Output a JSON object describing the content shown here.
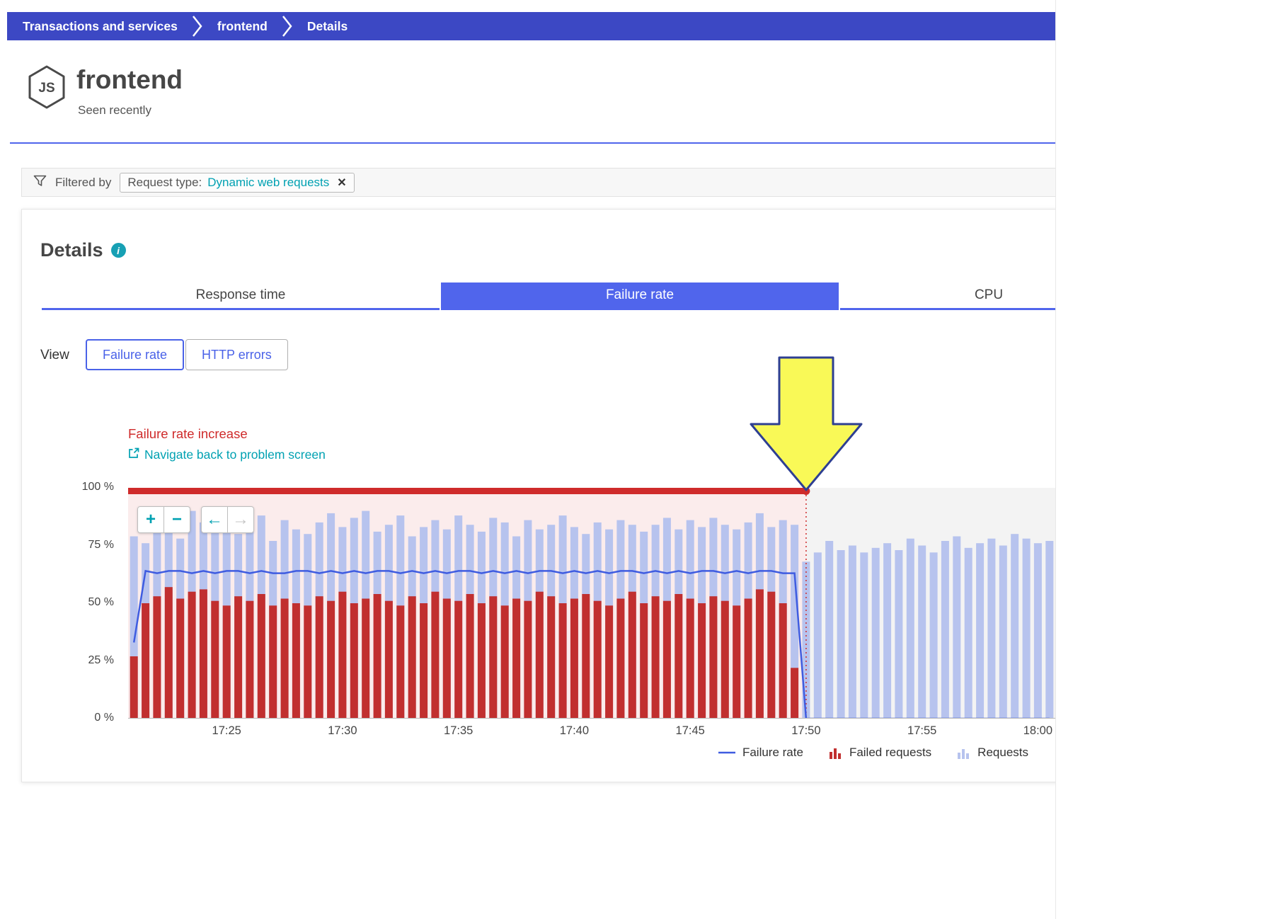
{
  "breadcrumb": {
    "items": [
      "Transactions and services",
      "frontend",
      "Details"
    ]
  },
  "header": {
    "title": "frontend",
    "subtitle": "Seen recently",
    "icon_text": "JS"
  },
  "filter": {
    "label": "Filtered by",
    "chip": {
      "key": "Request type:",
      "value": "Dynamic web requests",
      "close_glyph": "✕"
    }
  },
  "details": {
    "heading": "Details",
    "info_glyph": "i",
    "tabs": [
      {
        "label": "Response time",
        "active": false
      },
      {
        "label": "Failure rate",
        "active": true
      },
      {
        "label": "CPU",
        "active": false
      }
    ],
    "view": {
      "label": "View",
      "options": [
        {
          "label": "Failure rate",
          "selected": true
        },
        {
          "label": "HTTP errors",
          "selected": false
        }
      ]
    }
  },
  "annotation": {
    "title": "Failure rate increase",
    "link": "Navigate back to problem screen"
  },
  "zoom_controls": {
    "zoom_in": "+",
    "zoom_out": "−",
    "back": "←",
    "forward": "→"
  },
  "legend": [
    {
      "label": "Failure rate",
      "type": "line",
      "color": "#3f5ce0"
    },
    {
      "label": "Failed requests",
      "type": "bars",
      "color": "#c12f2f"
    },
    {
      "label": "Requests",
      "type": "bars",
      "color": "#b7c3ee"
    }
  ],
  "colors": {
    "breadcrumb_bg": "#3c48c4",
    "accent_blue": "#5065ec",
    "teal": "#00a1b2",
    "red": "#cf2b2b",
    "arrow_fill": "#f9f957",
    "arrow_stroke": "#2e3f92"
  },
  "chart_data": {
    "type": "bar",
    "title": "Failure rate increase",
    "ylim": [
      0,
      100
    ],
    "bar_count": 80,
    "problem_end_index": 58,
    "problem_region_color": "#fbecec",
    "after_region_color": "#f3f3f3",
    "cap_color": "#cf2b2b",
    "y_ticks": [
      {
        "label": "100 %",
        "value": 100
      },
      {
        "label": "75 %",
        "value": 75
      },
      {
        "label": "50 %",
        "value": 50
      },
      {
        "label": "25 %",
        "value": 25
      },
      {
        "label": "0 %",
        "value": 0
      }
    ],
    "x_ticks": [
      {
        "label": "17:25",
        "index": 8
      },
      {
        "label": "17:30",
        "index": 18
      },
      {
        "label": "17:35",
        "index": 28
      },
      {
        "label": "17:40",
        "index": 38
      },
      {
        "label": "17:45",
        "index": 48
      },
      {
        "label": "17:50",
        "index": 58
      },
      {
        "label": "17:55",
        "index": 68
      },
      {
        "label": "18:00",
        "index": 78
      }
    ],
    "series": [
      {
        "name": "Requests",
        "type": "bar",
        "color": "#b7c3ee",
        "values": [
          79,
          76,
          87,
          83,
          78,
          90,
          85,
          81,
          84,
          80,
          83,
          88,
          77,
          86,
          82,
          80,
          85,
          89,
          83,
          87,
          90,
          81,
          84,
          88,
          79,
          83,
          86,
          82,
          88,
          84,
          81,
          87,
          85,
          79,
          86,
          82,
          84,
          88,
          83,
          80,
          85,
          82,
          86,
          84,
          81,
          84,
          87,
          82,
          86,
          83,
          87,
          84,
          82,
          85,
          89,
          83,
          86,
          84,
          68,
          72,
          77,
          73,
          75,
          72,
          74,
          76,
          73,
          78,
          75,
          72,
          77,
          79,
          74,
          76,
          78,
          75,
          80,
          78,
          76,
          77
        ]
      },
      {
        "name": "Failed requests",
        "type": "bar",
        "color": "#c12f2f",
        "values": [
          27,
          50,
          53,
          57,
          52,
          55,
          56,
          51,
          49,
          53,
          51,
          54,
          49,
          52,
          50,
          49,
          53,
          51,
          55,
          50,
          52,
          54,
          51,
          49,
          53,
          50,
          55,
          52,
          51,
          54,
          50,
          53,
          49,
          52,
          51,
          55,
          53,
          50,
          52,
          54,
          51,
          49,
          52,
          55,
          50,
          53,
          51,
          54,
          52,
          50,
          53,
          51,
          49,
          52,
          56,
          55,
          50,
          22
        ]
      },
      {
        "name": "Failure rate",
        "type": "line",
        "color": "#3f5ce0",
        "values": [
          33,
          64,
          63,
          64,
          64,
          63,
          64,
          63,
          64,
          64,
          63,
          64,
          63,
          63,
          64,
          64,
          63,
          64,
          63,
          64,
          63,
          64,
          64,
          63,
          64,
          63,
          64,
          63,
          64,
          64,
          63,
          64,
          63,
          64,
          63,
          64,
          64,
          63,
          64,
          63,
          64,
          63,
          64,
          64,
          63,
          64,
          63,
          64,
          63,
          64,
          64,
          63,
          64,
          63,
          64,
          64,
          63,
          63,
          0,
          0,
          0,
          0,
          0,
          0,
          0,
          0,
          0,
          0,
          0,
          0,
          0,
          0,
          0,
          0,
          0,
          0,
          0,
          0,
          0,
          0
        ]
      }
    ],
    "legend_position": "bottom-right",
    "grid": false
  }
}
